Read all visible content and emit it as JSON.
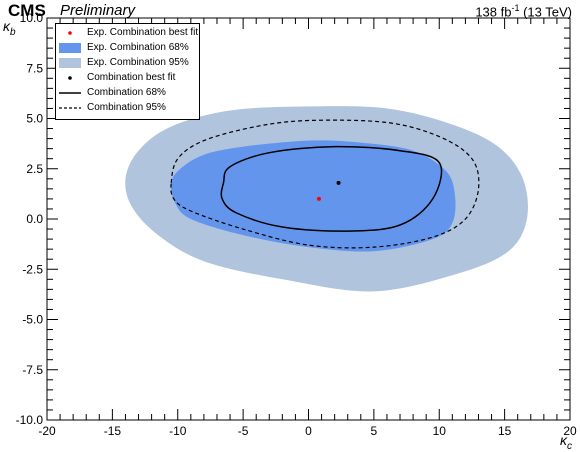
{
  "header": {
    "experiment": "CMS",
    "status": "Preliminary",
    "luminosity_prefix": "138 fb",
    "luminosity_exp": "-1",
    "luminosity_suffix": " (13 TeV)"
  },
  "axes": {
    "x_symbol": "κ",
    "x_sub": "c",
    "y_symbol": "κ",
    "y_sub": "b"
  },
  "colors": {
    "exp68": "#6495ed",
    "exp95": "#b0c4de",
    "exp_best": "#ff0000",
    "obs": "#000000"
  },
  "legend": {
    "items": [
      {
        "label": "Exp. Combination best fit",
        "symbol": "red-dot"
      },
      {
        "label": "Exp. Combination 68%",
        "symbol": "dark-blue-box"
      },
      {
        "label": "Exp. Combination 95%",
        "symbol": "light-blue-box"
      },
      {
        "label": "Combination best fit",
        "symbol": "black-dot"
      },
      {
        "label": "Combination 68%",
        "symbol": "solid-line"
      },
      {
        "label": "Combination 95%",
        "symbol": "dashed-line"
      }
    ]
  },
  "chart_data": {
    "type": "scatter",
    "xlim": [
      -20,
      20
    ],
    "ylim": [
      -10,
      10
    ],
    "x_ticks": [
      -20,
      -15,
      -10,
      -5,
      0,
      5,
      10,
      15,
      20
    ],
    "y_ticks": [
      -10.0,
      -7.5,
      -5.0,
      -2.5,
      0.0,
      2.5,
      5.0,
      7.5,
      10.0
    ],
    "y_tick_labels": [
      "-10.0",
      "-7.5",
      "-5.0",
      "-2.5",
      "0.0",
      "2.5",
      "5.0",
      "7.5",
      "10.0"
    ],
    "x_tick_labels": [
      "-20",
      "-15",
      "-10",
      "-5",
      "0",
      "5",
      "10",
      "15",
      "20"
    ],
    "grid": false,
    "legend_position": "top-left",
    "series": [
      {
        "name": "Exp. Combination best fit",
        "kind": "point",
        "x": 0.8,
        "y": 1.0
      },
      {
        "name": "Combination best fit",
        "kind": "point",
        "x": 2.3,
        "y": 1.8
      },
      {
        "name": "Exp. Combination 95%",
        "kind": "contour-fill",
        "points": [
          [
            -14.0,
            2.0
          ],
          [
            -13.0,
            3.4
          ],
          [
            -10.5,
            4.6
          ],
          [
            -6.0,
            5.4
          ],
          [
            0.0,
            5.6
          ],
          [
            6.0,
            5.5
          ],
          [
            11.0,
            4.7
          ],
          [
            14.5,
            3.6
          ],
          [
            16.4,
            2.0
          ],
          [
            16.7,
            0.0
          ],
          [
            15.3,
            -1.6
          ],
          [
            11.5,
            -2.7
          ],
          [
            5.0,
            -3.6
          ],
          [
            -2.0,
            -3.0
          ],
          [
            -8.0,
            -2.1
          ],
          [
            -11.5,
            -0.8
          ],
          [
            -13.5,
            0.6
          ]
        ]
      },
      {
        "name": "Exp. Combination 68%",
        "kind": "contour-fill",
        "points": [
          [
            -10.5,
            1.8
          ],
          [
            -9.8,
            2.5
          ],
          [
            -8.0,
            3.2
          ],
          [
            -5.0,
            3.6
          ],
          [
            0.0,
            3.9
          ],
          [
            4.0,
            3.8
          ],
          [
            8.0,
            3.4
          ],
          [
            10.5,
            2.4
          ],
          [
            11.2,
            1.2
          ],
          [
            11.0,
            -0.2
          ],
          [
            9.5,
            -1.0
          ],
          [
            5.0,
            -1.6
          ],
          [
            0.0,
            -1.4
          ],
          [
            -5.0,
            -0.8
          ],
          [
            -9.0,
            0.0
          ],
          [
            -10.2,
            0.8
          ]
        ]
      },
      {
        "name": "Combination 95%",
        "kind": "contour-line-dashed",
        "points": [
          [
            -10.5,
            1.8
          ],
          [
            -10.0,
            3.0
          ],
          [
            -8.0,
            3.9
          ],
          [
            -4.0,
            4.6
          ],
          [
            0.0,
            4.9
          ],
          [
            6.0,
            4.8
          ],
          [
            10.0,
            4.1
          ],
          [
            12.5,
            3.0
          ],
          [
            13.0,
            1.5
          ],
          [
            12.0,
            0.0
          ],
          [
            9.5,
            -0.9
          ],
          [
            5.0,
            -1.4
          ],
          [
            0.0,
            -1.3
          ],
          [
            -5.0,
            -0.5
          ],
          [
            -9.0,
            0.4
          ],
          [
            -10.3,
            1.0
          ]
        ]
      },
      {
        "name": "Combination 68%",
        "kind": "contour-line-solid",
        "points": [
          [
            -6.5,
            1.8
          ],
          [
            -6.0,
            2.6
          ],
          [
            -3.0,
            3.3
          ],
          [
            2.0,
            3.6
          ],
          [
            7.0,
            3.4
          ],
          [
            10.0,
            2.8
          ],
          [
            9.5,
            1.0
          ],
          [
            7.0,
            -0.3
          ],
          [
            3.0,
            -0.6
          ],
          [
            -2.0,
            -0.4
          ],
          [
            -5.5,
            0.3
          ],
          [
            -6.6,
            1.0
          ]
        ]
      }
    ]
  }
}
